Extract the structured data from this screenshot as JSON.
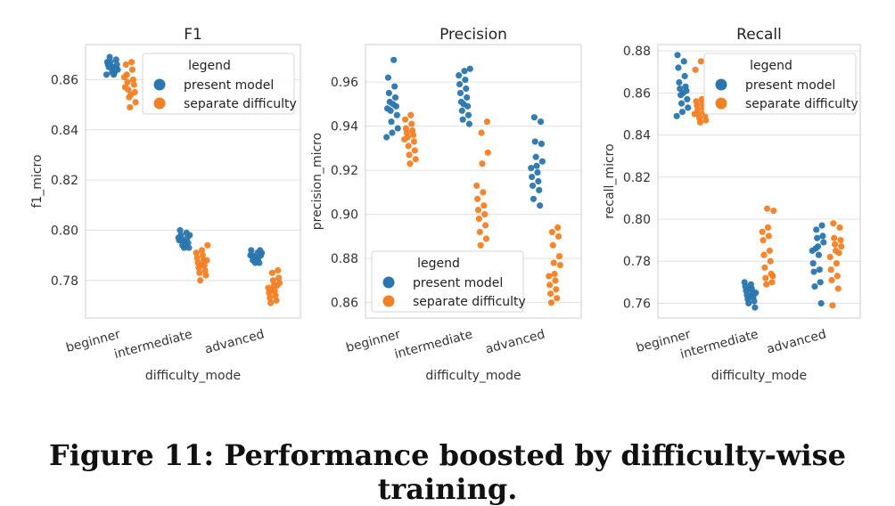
{
  "caption": "Figure 11: Performance boosted by difficulty-wise training.",
  "colors": {
    "present": "#2a76ad",
    "separate": "#f28024",
    "grid": "#e0e0e0",
    "frame": "#cccccc"
  },
  "chart_data": [
    {
      "type": "scatter",
      "subtype": "strip",
      "title": "F1",
      "xlabel": "difficulty_mode",
      "ylabel": "f1_micro",
      "categories": [
        "beginner",
        "intermediate",
        "advanced"
      ],
      "ylim": [
        0.765,
        0.874
      ],
      "yticks": [
        "0.78",
        "0.80",
        "0.82",
        "0.84",
        "0.86"
      ],
      "grid": true,
      "legend": {
        "title": "legend",
        "placement": "upper-right"
      },
      "series": [
        {
          "name": "present model",
          "values": [
            [
              0.862,
              0.863,
              0.864,
              0.865,
              0.866,
              0.867,
              0.868,
              0.869,
              0.864,
              0.865,
              0.863,
              0.866,
              0.862,
              0.867,
              0.865
            ],
            [
              0.793,
              0.794,
              0.795,
              0.796,
              0.797,
              0.798,
              0.799,
              0.8,
              0.794,
              0.796,
              0.795,
              0.797,
              0.793,
              0.798,
              0.796
            ],
            [
              0.787,
              0.788,
              0.789,
              0.79,
              0.791,
              0.792,
              0.788,
              0.79,
              0.789,
              0.791,
              0.787,
              0.79,
              0.788,
              0.792,
              0.789
            ]
          ]
        },
        {
          "name": "separate difficulty",
          "values": [
            [
              0.849,
              0.851,
              0.853,
              0.855,
              0.856,
              0.858,
              0.859,
              0.86,
              0.862,
              0.864,
              0.866,
              0.867,
              0.857,
              0.854,
              0.861
            ],
            [
              0.78,
              0.782,
              0.783,
              0.784,
              0.785,
              0.786,
              0.787,
              0.788,
              0.789,
              0.79,
              0.791,
              0.792,
              0.794,
              0.786,
              0.788
            ],
            [
              0.771,
              0.772,
              0.773,
              0.774,
              0.775,
              0.776,
              0.777,
              0.778,
              0.779,
              0.78,
              0.781,
              0.783,
              0.784,
              0.776,
              0.778
            ]
          ]
        }
      ]
    },
    {
      "type": "scatter",
      "subtype": "strip",
      "title": "Precision",
      "xlabel": "difficulty_mode",
      "ylabel": "precision_micro",
      "categories": [
        "beginner",
        "intermediate",
        "advanced"
      ],
      "ylim": [
        0.853,
        0.977
      ],
      "yticks": [
        "0.86",
        "0.88",
        "0.90",
        "0.92",
        "0.94",
        "0.96"
      ],
      "grid": true,
      "legend": {
        "title": "legend",
        "placement": "lower-left"
      },
      "series": [
        {
          "name": "present model",
          "values": [
            [
              0.935,
              0.937,
              0.939,
              0.942,
              0.945,
              0.947,
              0.949,
              0.951,
              0.953,
              0.955,
              0.958,
              0.962,
              0.97,
              0.948,
              0.95
            ],
            [
              0.941,
              0.943,
              0.945,
              0.947,
              0.949,
              0.951,
              0.953,
              0.955,
              0.957,
              0.959,
              0.961,
              0.963,
              0.965,
              0.966,
              0.95
            ],
            [
              0.904,
              0.907,
              0.911,
              0.913,
              0.915,
              0.917,
              0.919,
              0.921,
              0.922,
              0.924,
              0.926,
              0.932,
              0.933,
              0.942,
              0.944
            ]
          ]
        },
        {
          "name": "separate difficulty",
          "values": [
            [
              0.923,
              0.925,
              0.927,
              0.929,
              0.931,
              0.933,
              0.935,
              0.936,
              0.937,
              0.938,
              0.939,
              0.941,
              0.943,
              0.945,
              0.934
            ],
            [
              0.886,
              0.889,
              0.892,
              0.895,
              0.898,
              0.9,
              0.902,
              0.904,
              0.907,
              0.91,
              0.913,
              0.923,
              0.928,
              0.937,
              0.942
            ],
            [
              0.86,
              0.862,
              0.864,
              0.866,
              0.868,
              0.87,
              0.872,
              0.873,
              0.877,
              0.878,
              0.881,
              0.886,
              0.89,
              0.892,
              0.894
            ]
          ]
        }
      ]
    },
    {
      "type": "scatter",
      "subtype": "strip",
      "title": "Recall",
      "xlabel": "difficulty_mode",
      "ylabel": "recall_micro",
      "categories": [
        "beginner",
        "intermediate",
        "advanced"
      ],
      "ylim": [
        0.753,
        0.883
      ],
      "yticks": [
        "0.76",
        "0.78",
        "0.80",
        "0.82",
        "0.84",
        "0.86",
        "0.88"
      ],
      "grid": true,
      "legend": {
        "title": "legend",
        "placement": "upper-right"
      },
      "series": [
        {
          "name": "present model",
          "values": [
            [
              0.849,
              0.851,
              0.853,
              0.855,
              0.857,
              0.859,
              0.861,
              0.862,
              0.863,
              0.865,
              0.868,
              0.872,
              0.875,
              0.878,
              0.86
            ],
            [
              0.758,
              0.76,
              0.761,
              0.762,
              0.763,
              0.764,
              0.765,
              0.766,
              0.767,
              0.768,
              0.769,
              0.77,
              0.763,
              0.765,
              0.767
            ],
            [
              0.76,
              0.768,
              0.77,
              0.775,
              0.776,
              0.779,
              0.783,
              0.785,
              0.787,
              0.789,
              0.791,
              0.792,
              0.795,
              0.797,
              0.786
            ]
          ]
        },
        {
          "name": "separate difficulty",
          "values": [
            [
              0.846,
              0.847,
              0.848,
              0.849,
              0.85,
              0.851,
              0.852,
              0.853,
              0.854,
              0.855,
              0.856,
              0.857,
              0.871,
              0.875,
              0.85
            ],
            [
              0.769,
              0.77,
              0.772,
              0.774,
              0.777,
              0.78,
              0.783,
              0.785,
              0.79,
              0.792,
              0.794,
              0.796,
              0.804,
              0.805,
              0.773
            ],
            [
              0.759,
              0.767,
              0.771,
              0.773,
              0.776,
              0.779,
              0.782,
              0.785,
              0.787,
              0.788,
              0.79,
              0.791,
              0.796,
              0.798,
              0.784
            ]
          ]
        }
      ]
    }
  ]
}
